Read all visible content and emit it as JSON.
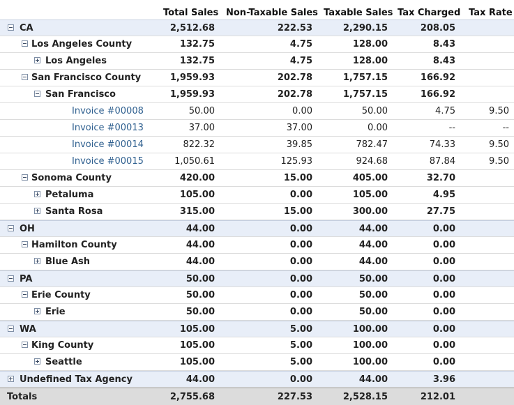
{
  "columns": [
    "Total Sales",
    "Non-Taxable Sales",
    "Taxable Sales",
    "Tax Charged",
    "Tax Rate"
  ],
  "rows": [
    {
      "level": 0,
      "type": "group",
      "toggle": "minus",
      "label": "CA",
      "total": "2,512.68",
      "nontax": "222.53",
      "taxable": "2,290.15",
      "charged": "208.05",
      "rate": ""
    },
    {
      "level": 1,
      "type": "group",
      "toggle": "minus",
      "label": "Los Angeles County",
      "total": "132.75",
      "nontax": "4.75",
      "taxable": "128.00",
      "charged": "8.43",
      "rate": ""
    },
    {
      "level": 2,
      "type": "group",
      "toggle": "plus",
      "label": "Los Angeles",
      "total": "132.75",
      "nontax": "4.75",
      "taxable": "128.00",
      "charged": "8.43",
      "rate": ""
    },
    {
      "level": 1,
      "type": "group",
      "toggle": "minus",
      "label": "San Francisco County",
      "total": "1,959.93",
      "nontax": "202.78",
      "taxable": "1,757.15",
      "charged": "166.92",
      "rate": ""
    },
    {
      "level": 2,
      "type": "group",
      "toggle": "minus",
      "label": "San Francisco",
      "total": "1,959.93",
      "nontax": "202.78",
      "taxable": "1,757.15",
      "charged": "166.92",
      "rate": ""
    },
    {
      "level": 3,
      "type": "invoice",
      "label": "Invoice #00008",
      "total": "50.00",
      "nontax": "0.00",
      "taxable": "50.00",
      "charged": "4.75",
      "rate": "9.50"
    },
    {
      "level": 3,
      "type": "invoice",
      "label": "Invoice #00013",
      "total": "37.00",
      "nontax": "37.00",
      "taxable": "0.00",
      "charged": "--",
      "rate": "--"
    },
    {
      "level": 3,
      "type": "invoice",
      "label": "Invoice #00014",
      "total": "822.32",
      "nontax": "39.85",
      "taxable": "782.47",
      "charged": "74.33",
      "rate": "9.50"
    },
    {
      "level": 3,
      "type": "invoice",
      "label": "Invoice #00015",
      "total": "1,050.61",
      "nontax": "125.93",
      "taxable": "924.68",
      "charged": "87.84",
      "rate": "9.50"
    },
    {
      "level": 1,
      "type": "group",
      "toggle": "minus",
      "label": "Sonoma County",
      "total": "420.00",
      "nontax": "15.00",
      "taxable": "405.00",
      "charged": "32.70",
      "rate": ""
    },
    {
      "level": 2,
      "type": "group",
      "toggle": "plus",
      "label": "Petaluma",
      "total": "105.00",
      "nontax": "0.00",
      "taxable": "105.00",
      "charged": "4.95",
      "rate": ""
    },
    {
      "level": 2,
      "type": "group",
      "toggle": "plus",
      "label": "Santa Rosa",
      "total": "315.00",
      "nontax": "15.00",
      "taxable": "300.00",
      "charged": "27.75",
      "rate": ""
    },
    {
      "level": 0,
      "type": "group",
      "toggle": "minus",
      "label": "OH",
      "total": "44.00",
      "nontax": "0.00",
      "taxable": "44.00",
      "charged": "0.00",
      "rate": ""
    },
    {
      "level": 1,
      "type": "group",
      "toggle": "minus",
      "label": "Hamilton County",
      "total": "44.00",
      "nontax": "0.00",
      "taxable": "44.00",
      "charged": "0.00",
      "rate": ""
    },
    {
      "level": 2,
      "type": "group",
      "toggle": "plus",
      "label": "Blue Ash",
      "total": "44.00",
      "nontax": "0.00",
      "taxable": "44.00",
      "charged": "0.00",
      "rate": ""
    },
    {
      "level": 0,
      "type": "group",
      "toggle": "minus",
      "label": "PA",
      "total": "50.00",
      "nontax": "0.00",
      "taxable": "50.00",
      "charged": "0.00",
      "rate": ""
    },
    {
      "level": 1,
      "type": "group",
      "toggle": "minus",
      "label": "Erie County",
      "total": "50.00",
      "nontax": "0.00",
      "taxable": "50.00",
      "charged": "0.00",
      "rate": ""
    },
    {
      "level": 2,
      "type": "group",
      "toggle": "plus",
      "label": "Erie",
      "total": "50.00",
      "nontax": "0.00",
      "taxable": "50.00",
      "charged": "0.00",
      "rate": ""
    },
    {
      "level": 0,
      "type": "group",
      "toggle": "minus",
      "label": "WA",
      "total": "105.00",
      "nontax": "5.00",
      "taxable": "100.00",
      "charged": "0.00",
      "rate": ""
    },
    {
      "level": 1,
      "type": "group",
      "toggle": "minus",
      "label": "King County",
      "total": "105.00",
      "nontax": "5.00",
      "taxable": "100.00",
      "charged": "0.00",
      "rate": ""
    },
    {
      "level": 2,
      "type": "group",
      "toggle": "plus",
      "label": "Seattle",
      "total": "105.00",
      "nontax": "5.00",
      "taxable": "100.00",
      "charged": "0.00",
      "rate": ""
    },
    {
      "level": 0,
      "type": "group",
      "toggle": "plus",
      "label": "Undefined Tax Agency",
      "total": "44.00",
      "nontax": "0.00",
      "taxable": "44.00",
      "charged": "3.96",
      "rate": ""
    }
  ],
  "totals": {
    "label": "Totals",
    "total": "2,755.68",
    "nontax": "227.53",
    "taxable": "2,528.15",
    "charged": "212.01",
    "rate": ""
  }
}
